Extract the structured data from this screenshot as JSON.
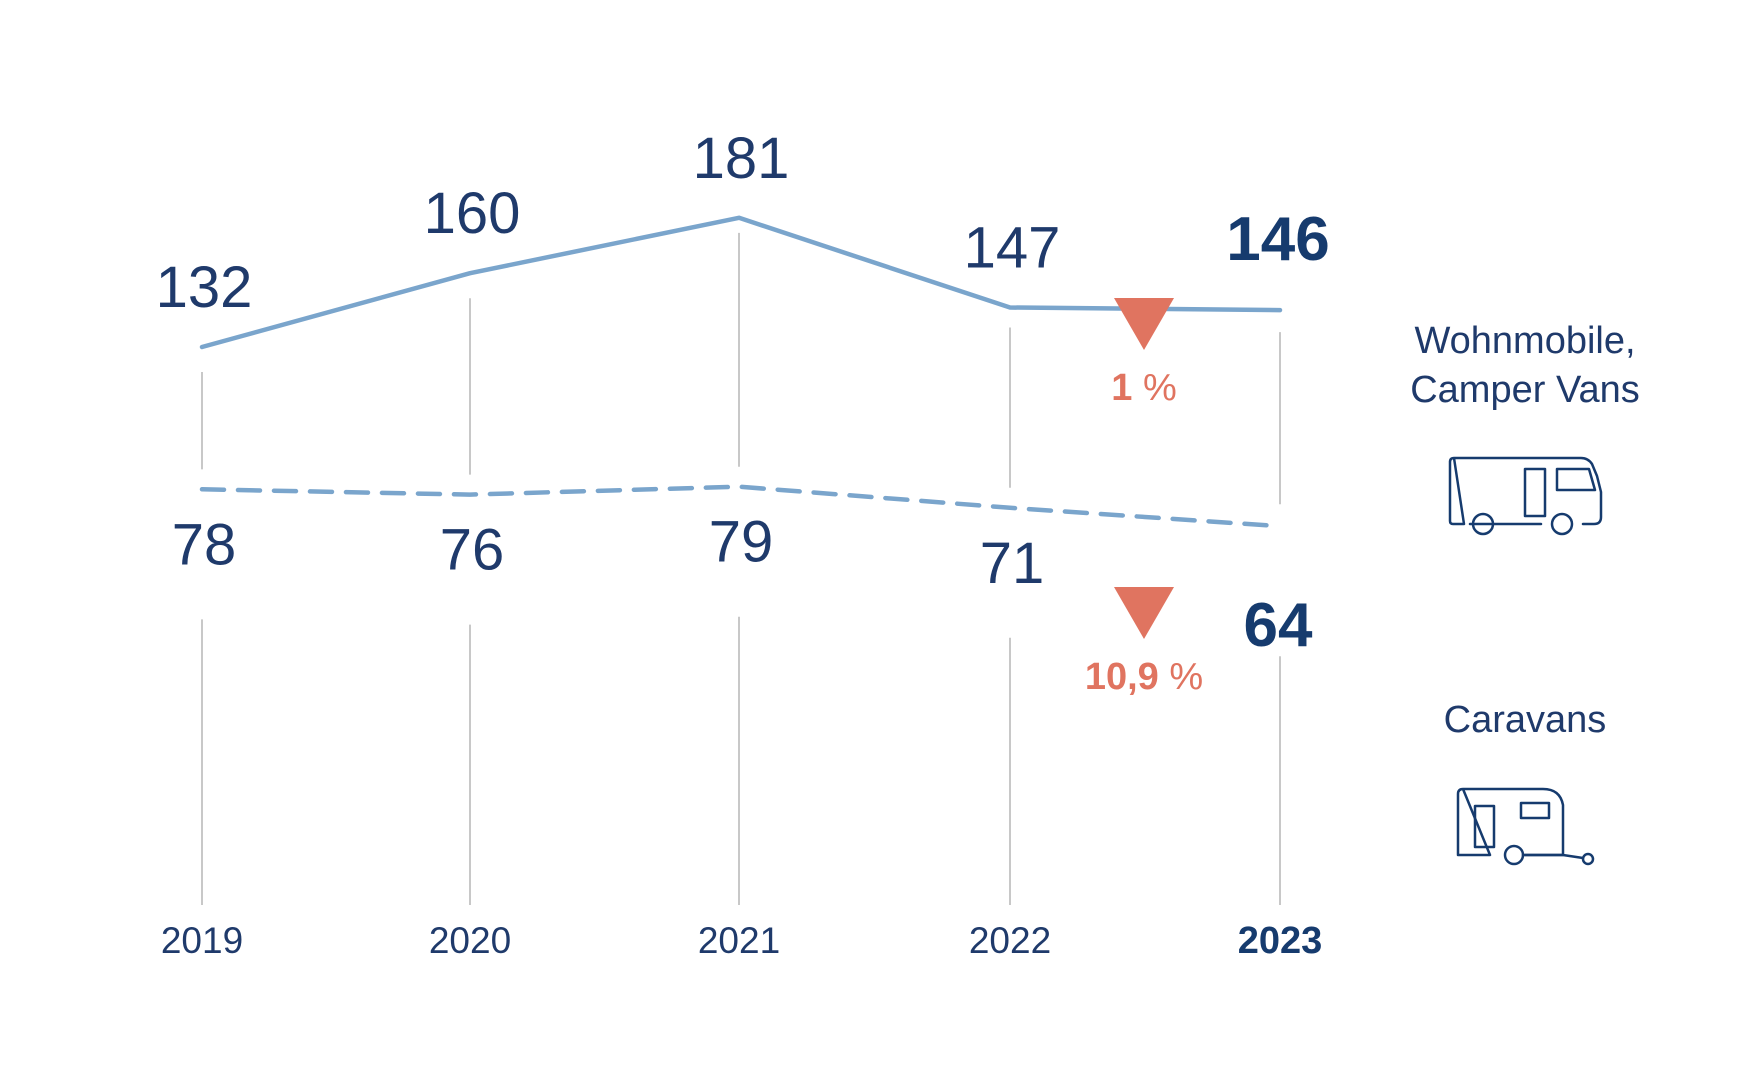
{
  "chart_data": {
    "type": "line",
    "x": [
      "2019",
      "2020",
      "2021",
      "2022",
      "2023"
    ],
    "highlight_x": "2023",
    "series": [
      {
        "name": "Wohnmobile, Camper Vans",
        "values": [
          132,
          160,
          181,
          147,
          146
        ],
        "labels": [
          "132",
          "160",
          "181",
          "147",
          "146"
        ],
        "style": "solid",
        "color": "#7aa5cc"
      },
      {
        "name": "Caravans",
        "values": [
          78,
          76,
          79,
          71,
          64
        ],
        "labels": [
          "78",
          "76",
          "79",
          "71",
          "64"
        ],
        "style": "dashed",
        "color": "#7aa5cc"
      }
    ],
    "changes": [
      {
        "series": "Wohnmobile, Camper Vans",
        "direction": "down",
        "number": "1",
        "percent_sign": "%"
      },
      {
        "series": "Caravans",
        "direction": "down",
        "number": "10,9",
        "percent_sign": "%"
      }
    ],
    "legend": [
      {
        "lines": [
          "Wohnmobile,",
          "Camper Vans"
        ],
        "icon": "motorhome-icon"
      },
      {
        "lines": [
          "Caravans"
        ],
        "icon": "caravan-icon"
      }
    ],
    "colors": {
      "line": "#7aa5cc",
      "text": "#1f3a6b",
      "text_bold": "#163b6e",
      "decline": "#e07460",
      "grid": "#c8c8c8",
      "icon": "#163b6e"
    },
    "grid": "vertical"
  }
}
